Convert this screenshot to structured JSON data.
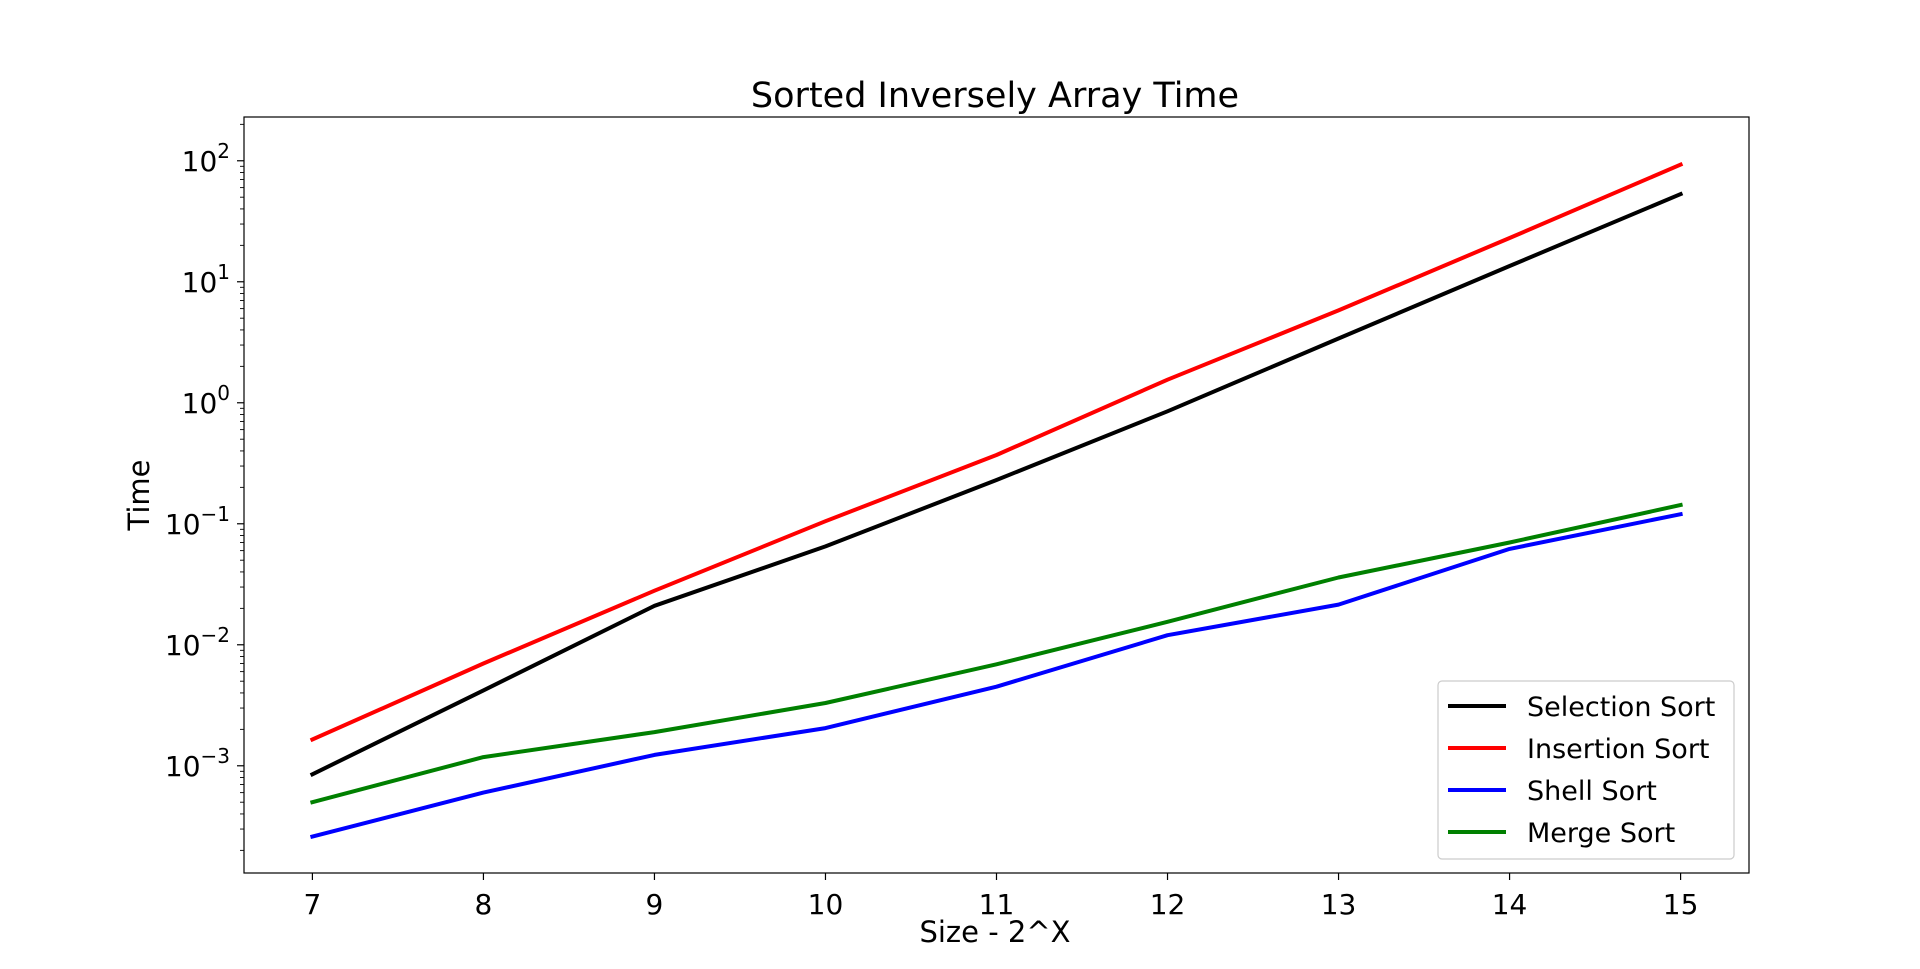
{
  "chart_data": {
    "type": "line",
    "title": "Sorted Inversely Array Time",
    "xlabel": "Size - 2^X",
    "ylabel": "Time",
    "x": [
      7,
      8,
      9,
      10,
      11,
      12,
      13,
      14,
      15
    ],
    "xlim": [
      6.6,
      15.4
    ],
    "yscale": "log",
    "ylim": [
      0.00013,
      230
    ],
    "xticks": [
      "7",
      "8",
      "9",
      "10",
      "11",
      "12",
      "13",
      "14",
      "15"
    ],
    "yticks": [
      {
        "base": "10",
        "exp": "−3",
        "value": 0.001
      },
      {
        "base": "10",
        "exp": "−2",
        "value": 0.01
      },
      {
        "base": "10",
        "exp": "−1",
        "value": 0.1
      },
      {
        "base": "10",
        "exp": "0",
        "value": 1
      },
      {
        "base": "10",
        "exp": "1",
        "value": 10
      },
      {
        "base": "10",
        "exp": "2",
        "value": 100
      }
    ],
    "grid": false,
    "legend_position": "lower-right",
    "series": [
      {
        "name": "Selection Sort",
        "color": "#000000",
        "values": [
          0.00085,
          0.0042,
          0.021,
          0.065,
          0.23,
          0.85,
          3.4,
          13.5,
          53
        ]
      },
      {
        "name": "Insertion Sort",
        "color": "#ff0000",
        "values": [
          0.00165,
          0.007,
          0.028,
          0.105,
          0.37,
          1.55,
          5.8,
          23,
          93
        ]
      },
      {
        "name": "Shell Sort",
        "color": "#0000ff",
        "values": [
          0.00026,
          0.0006,
          0.00123,
          0.00205,
          0.0045,
          0.012,
          0.0215,
          0.062,
          0.12
        ]
      },
      {
        "name": "Merge Sort",
        "color": "#008000",
        "values": [
          0.0005,
          0.00118,
          0.0019,
          0.0033,
          0.0069,
          0.0155,
          0.036,
          0.07,
          0.143
        ]
      }
    ]
  }
}
